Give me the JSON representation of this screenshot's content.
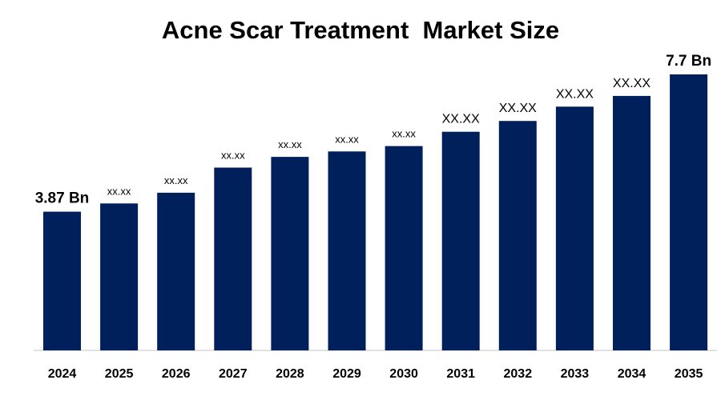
{
  "chart_data": {
    "type": "bar",
    "title": "Acne Scar Treatment  Market Size",
    "xlabel": "",
    "ylabel": "",
    "categories": [
      "2024",
      "2025",
      "2026",
      "2027",
      "2028",
      "2029",
      "2030",
      "2031",
      "2032",
      "2033",
      "2034",
      "2035"
    ],
    "values": [
      3.87,
      4.1,
      4.4,
      5.1,
      5.4,
      5.55,
      5.7,
      6.1,
      6.4,
      6.8,
      7.1,
      7.7
    ],
    "data_labels": [
      "3.87 Bn",
      "xx.xx",
      "xx.xx",
      "xx.xx",
      "xx.xx",
      "xx.xx",
      "xx.xx",
      "XX.XX",
      "XX.XX",
      "XX.XX",
      "XX.XX",
      "7.7 Bn"
    ],
    "ylim": [
      0,
      7.7
    ],
    "grid": false,
    "legend": "none",
    "bar_color": "#00205b",
    "axis_color": "#d9d9d9"
  }
}
